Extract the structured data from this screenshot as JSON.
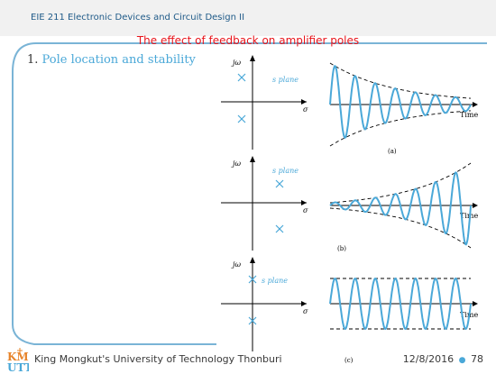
{
  "header": {
    "course": "EIE 211 Electronic Devices and Circuit Design II",
    "title": "The effect of feedback on amplifier poles"
  },
  "content": {
    "bullet_number": "1.",
    "bullet_text": "Pole location and stability"
  },
  "figures": [
    {
      "panel": "(a)",
      "plane_label": "s plane",
      "jw": "jω",
      "sigma": "σ",
      "time": "Time"
    },
    {
      "panel": "(b)",
      "plane_label": "s plane",
      "jw": "jω",
      "sigma": "σ",
      "time": "Time"
    },
    {
      "panel": "(c)",
      "plane_label": "s plane",
      "jw": "jω",
      "sigma": "σ",
      "time": "Time"
    }
  ],
  "footer": {
    "logo_text": "KMUTT",
    "org": "King Mongkut's University of Technology Thonburi",
    "date": "12/8/2016",
    "page": "78"
  },
  "colors": {
    "accent": "#4aa8d8",
    "title_red": "#e8141b",
    "course_blue": "#1f5a88",
    "logo_orange": "#e7842b"
  }
}
